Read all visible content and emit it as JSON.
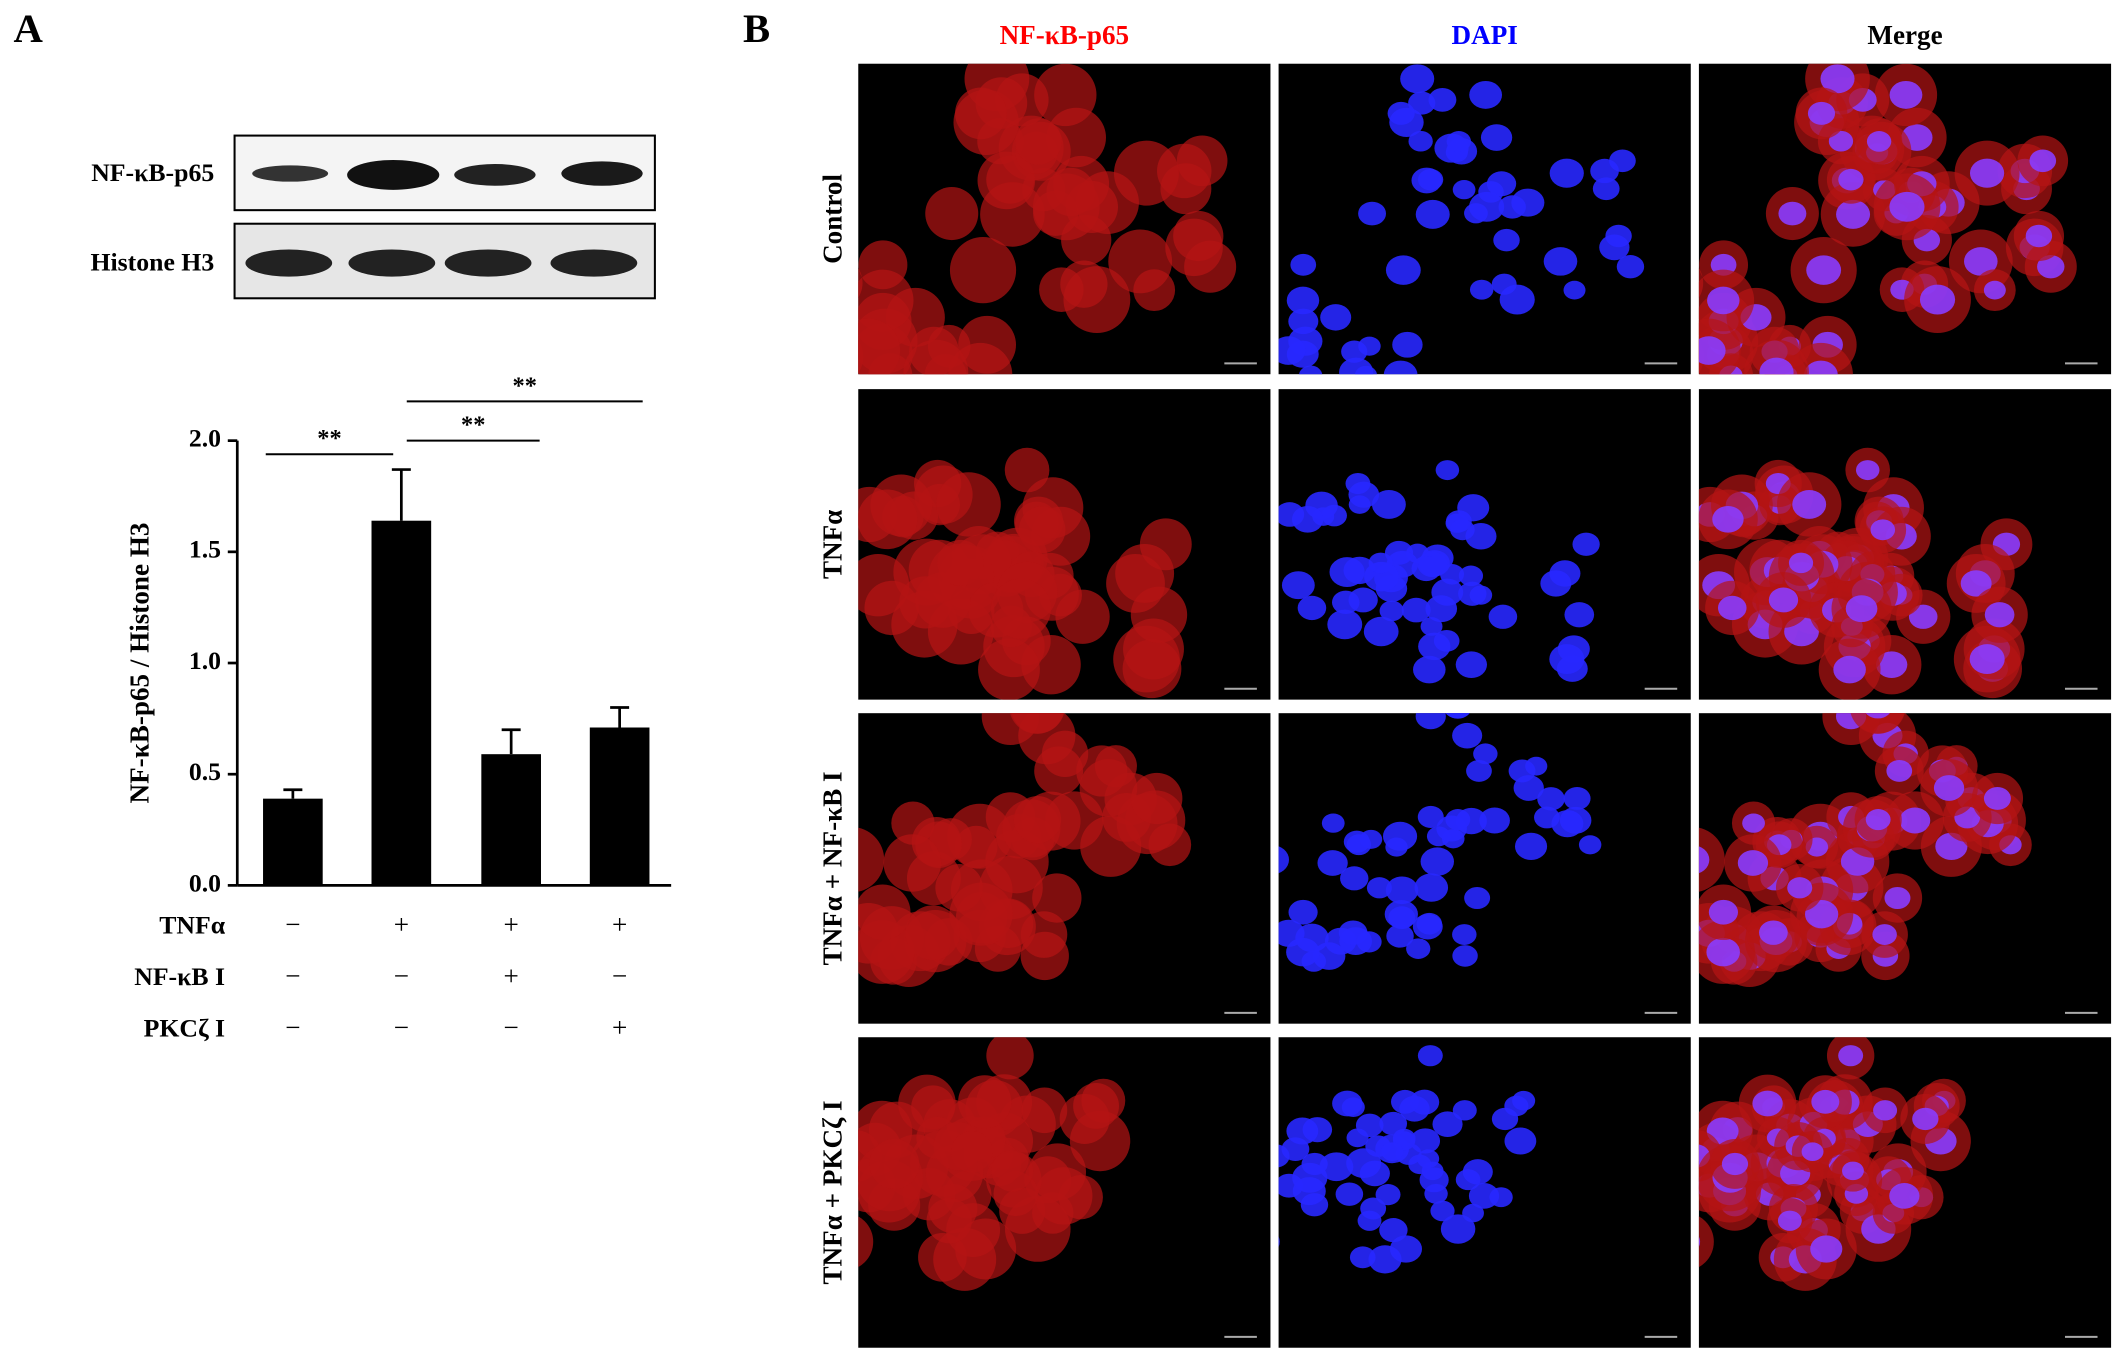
{
  "panel_labels": [
    "A",
    "B"
  ],
  "blot": {
    "bands": [
      "NF-κB-p65",
      "Histone H3"
    ]
  },
  "chart_data": {
    "type": "bar",
    "y_label": "NF-κB-p65 / Histone H3",
    "categories": [
      null,
      null,
      null,
      null
    ],
    "values": [
      0.39,
      1.64,
      0.59,
      0.71
    ],
    "errors": [
      0.04,
      0.23,
      0.11,
      0.09
    ],
    "color": "#000000",
    "ylim": [
      0,
      2
    ],
    "yticks": [
      {
        "value": 0,
        "label": "0.0"
      },
      {
        "value": 0.5,
        "label": "0.5"
      },
      {
        "value": 1,
        "label": "1.0"
      },
      {
        "value": 1.5,
        "label": "1.5"
      },
      {
        "value": 2,
        "label": "2.0"
      }
    ],
    "significance": [
      "**",
      "**",
      "**"
    ],
    "conditions": [
      {
        "name": "TNFα",
        "signs": [
          "−",
          "+",
          "+",
          "+"
        ]
      },
      {
        "name": "NF-κB I",
        "signs": [
          "−",
          "−",
          "+",
          "−"
        ]
      },
      {
        "name": "PKCζ I",
        "signs": [
          "−",
          "−",
          "−",
          "+"
        ]
      }
    ]
  },
  "microscopy": {
    "columns": [
      {
        "label": "NF-κB-p65",
        "color": "#ff0000"
      },
      {
        "label": "DAPI",
        "color": "#0000ff"
      },
      {
        "label": "Merge",
        "color": "#000000"
      }
    ],
    "rows": [
      "Control",
      "TNFα",
      "TNFα + NF-κB I",
      "TNFα + PKCζ I"
    ]
  }
}
